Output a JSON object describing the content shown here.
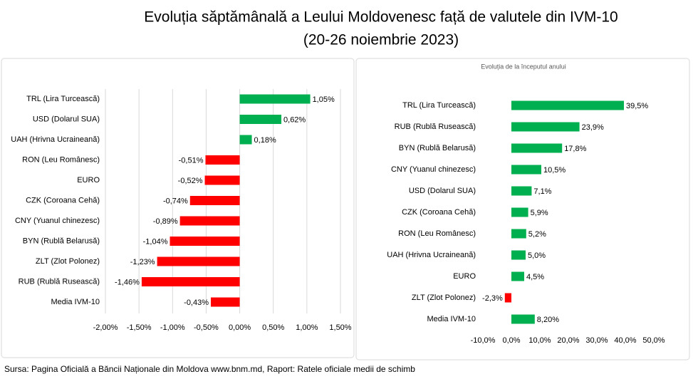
{
  "title": "Evoluția săptămânală a Leului Moldovenesc față de valutele din IVM-10",
  "subtitle": "(20-26 noiembrie 2023)",
  "source": "Sursa: Pagina Oficială a Băncii Naționale din Moldova www.bnm.md, Raport: Ratele oficiale medii de schimb",
  "chart_data": [
    {
      "type": "hbar",
      "categories": [
        "TRL (Lira Turcească)",
        "USD (Dolarul SUA)",
        "UAH (Hrivna Ucraineană)",
        "RON (Leu Românesc)",
        "EURO",
        "CZK (Coroana Cehă)",
        "CNY (Yuanul chinezesc)",
        "BYN (Rublă Belarusă)",
        "ZLT (Zlot Polonez)",
        "RUB (Rublă Rusească)",
        "Media IVM-10"
      ],
      "values": [
        1.05,
        0.62,
        0.18,
        -0.51,
        -0.52,
        -0.74,
        -0.89,
        -1.04,
        -1.23,
        -1.46,
        -0.43
      ],
      "value_labels": [
        "1,05%",
        "0,62%",
        "0,18%",
        "-0,51%",
        "-0,52%",
        "-0,74%",
        "-0,89%",
        "-1,04%",
        "-1,23%",
        "-1,46%",
        "-0,43%"
      ],
      "colors": [
        "#00b050",
        "#00b050",
        "#00b050",
        "#ff0000",
        "#ff0000",
        "#ff0000",
        "#ff0000",
        "#ff0000",
        "#ff0000",
        "#ff0000",
        "#ff0000"
      ],
      "xlim": [
        -2,
        1.5
      ],
      "xticks": [
        {
          "value": -2,
          "label": "-2,00%"
        },
        {
          "value": -1.5,
          "label": "-1,50%"
        },
        {
          "value": -1,
          "label": "-1,00%"
        },
        {
          "value": -0.5,
          "label": "-0,50%"
        },
        {
          "value": 0,
          "label": "0,00%"
        },
        {
          "value": 0.5,
          "label": "0,50%"
        },
        {
          "value": 1,
          "label": "1,00%"
        },
        {
          "value": 1.5,
          "label": "1,50%"
        }
      ],
      "grid": true
    },
    {
      "type": "hbar",
      "title": "Evoluția de la începutul anului",
      "categories": [
        "TRL (Lira Turcească)",
        "RUB (Rublă Rusească)",
        "BYN (Rublă Belarusă)",
        "CNY (Yuanul chinezesc)",
        "USD (Dolarul SUA)",
        "CZK (Coroana Cehă)",
        "RON (Leu Românesc)",
        "UAH (Hrivna Ucraineană)",
        "EURO",
        "ZLT (Zlot Polonez)",
        "Media IVM-10"
      ],
      "values": [
        39.5,
        23.9,
        17.8,
        10.5,
        7.1,
        5.9,
        5.2,
        5.0,
        4.5,
        -2.3,
        8.2
      ],
      "value_labels": [
        "39,5%",
        "23,9%",
        "17,8%",
        "10,5%",
        "7,1%",
        "5,9%",
        "5,2%",
        "5,0%",
        "4,5%",
        "-2,3%",
        "8,20%"
      ],
      "colors": [
        "#00b050",
        "#00b050",
        "#00b050",
        "#00b050",
        "#00b050",
        "#00b050",
        "#00b050",
        "#00b050",
        "#00b050",
        "#ff0000",
        "#00b050"
      ],
      "xlim": [
        -10,
        50
      ],
      "xticks": [
        {
          "value": -10,
          "label": "-10,0%"
        },
        {
          "value": 0,
          "label": "0,0%"
        },
        {
          "value": 10,
          "label": "10,0%"
        },
        {
          "value": 20,
          "label": "20,0%"
        },
        {
          "value": 30,
          "label": "30,0%"
        },
        {
          "value": 40,
          "label": "40,0%"
        },
        {
          "value": 50,
          "label": "50,0%"
        }
      ],
      "grid": false
    }
  ]
}
